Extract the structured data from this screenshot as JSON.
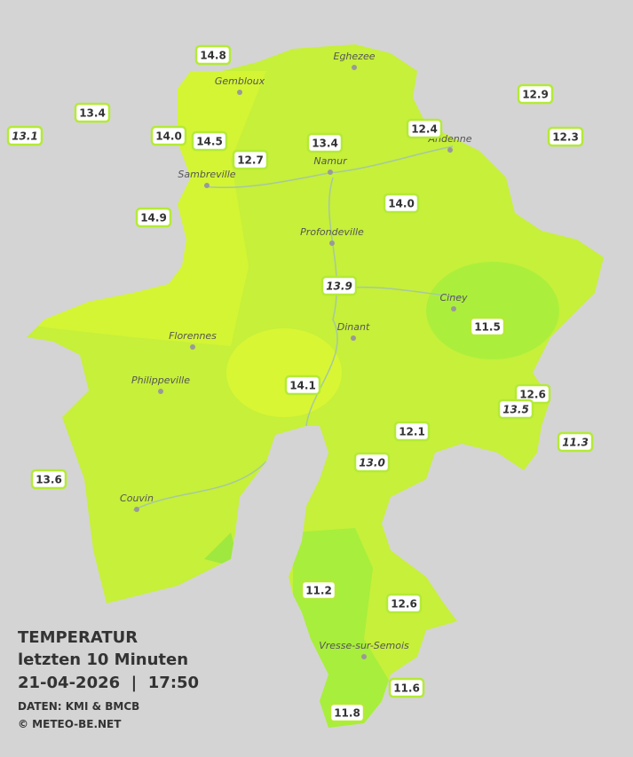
{
  "legend": {
    "title": "TEMPERATUR",
    "subtitle": "letzten 10 Minuten",
    "datetime": "21-04-2026  |  17:50",
    "source": "DATEN: KMI & BMCB",
    "copyright": "© METEO-BE.NET"
  },
  "towns": [
    "Eghezee",
    "Gembloux",
    "Andenne",
    "Namur",
    "Sambreville",
    "Profondeville",
    "Ciney",
    "Dinant",
    "Florennes",
    "Philippeville",
    "Couvin",
    "Vresse-sur-Semois"
  ],
  "stations": [
    {
      "value": "14.8"
    },
    {
      "value": "13.4"
    },
    {
      "value": "13.1",
      "italic": true
    },
    {
      "value": "14.0"
    },
    {
      "value": "14.5"
    },
    {
      "value": "12.7"
    },
    {
      "value": "13.4"
    },
    {
      "value": "12.4"
    },
    {
      "value": "12.9"
    },
    {
      "value": "12.3"
    },
    {
      "value": "14.9"
    },
    {
      "value": "14.0"
    },
    {
      "value": "13.9",
      "italic": true
    },
    {
      "value": "11.5"
    },
    {
      "value": "14.1"
    },
    {
      "value": "12.6"
    },
    {
      "value": "13.5",
      "italic": true
    },
    {
      "value": "12.1"
    },
    {
      "value": "13.0",
      "italic": true
    },
    {
      "value": "11.3",
      "italic": true
    },
    {
      "value": "13.6"
    },
    {
      "value": "11.2"
    },
    {
      "value": "12.6"
    },
    {
      "value": "11.6"
    },
    {
      "value": "11.8"
    }
  ]
}
